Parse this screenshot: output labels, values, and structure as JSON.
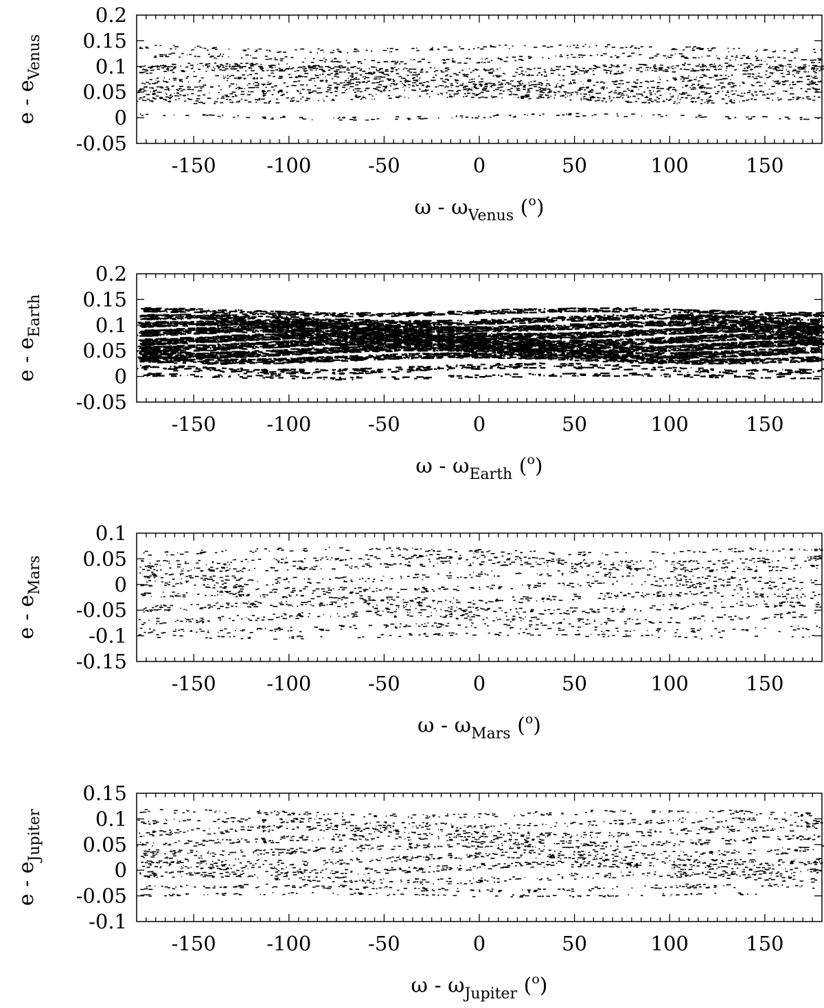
{
  "chart_data": [
    {
      "type": "scatter",
      "xlabel": {
        "prefix": "ω - ω",
        "sub": "Venus",
        "unit_open": " (",
        "unit_sup": "o",
        "unit_close": ")"
      },
      "ylabel": {
        "prefix": "e - e",
        "sub": "Venus"
      },
      "xlim": [
        -180,
        180
      ],
      "ylim": [
        -0.05,
        0.2
      ],
      "xticks": [
        -150,
        -100,
        -50,
        0,
        50,
        100,
        150
      ],
      "xtick_labels": [
        "-150",
        "-100",
        "-50",
        "0",
        "50",
        "100",
        "150"
      ],
      "yticks": [
        -0.05,
        0,
        0.05,
        0.1,
        0.15,
        0.2
      ],
      "ytick_labels": [
        "-0.05",
        "0",
        "0.05",
        "0.1",
        "0.15",
        "0.2"
      ],
      "grid": false,
      "density": 1.0,
      "bands": [
        [
          0.135,
          0.008,
          0.6
        ],
        [
          0.115,
          0.01,
          0.8
        ],
        [
          0.098,
          0.008,
          1.0
        ],
        [
          0.09,
          0.01,
          1.3
        ],
        [
          0.075,
          0.012,
          1.2
        ],
        [
          0.062,
          0.012,
          1.4
        ],
        [
          0.05,
          0.012,
          1.3
        ],
        [
          0.038,
          0.01,
          1.0
        ],
        [
          0.002,
          0.006,
          0.5
        ]
      ]
    },
    {
      "type": "scatter",
      "xlabel": {
        "prefix": "ω - ω",
        "sub": "Earth",
        "unit_open": " (",
        "unit_sup": "o",
        "unit_close": ")"
      },
      "ylabel": {
        "prefix": "e - e",
        "sub": "Earth"
      },
      "xlim": [
        -180,
        180
      ],
      "ylim": [
        -0.05,
        0.2
      ],
      "xticks": [
        -150,
        -100,
        -50,
        0,
        50,
        100,
        150
      ],
      "xtick_labels": [
        "-150",
        "-100",
        "-50",
        "0",
        "50",
        "100",
        "150"
      ],
      "yticks": [
        -0.05,
        0,
        0.05,
        0.1,
        0.15,
        0.2
      ],
      "ytick_labels": [
        "-0.05",
        "0",
        "0.05",
        "0.1",
        "0.15",
        "0.2"
      ],
      "grid": false,
      "density": 2.6,
      "bands": [
        [
          0.125,
          0.008,
          0.9
        ],
        [
          0.11,
          0.01,
          1.4
        ],
        [
          0.098,
          0.01,
          2.0
        ],
        [
          0.085,
          0.012,
          2.4
        ],
        [
          0.072,
          0.012,
          2.4
        ],
        [
          0.06,
          0.012,
          2.4
        ],
        [
          0.048,
          0.012,
          2.2
        ],
        [
          0.035,
          0.01,
          1.5
        ],
        [
          0.015,
          0.01,
          0.6
        ],
        [
          0.0,
          0.006,
          0.3
        ]
      ]
    },
    {
      "type": "scatter",
      "xlabel": {
        "prefix": "ω - ω",
        "sub": "Mars",
        "unit_open": " (",
        "unit_sup": "o",
        "unit_close": ")"
      },
      "ylabel": {
        "prefix": "e - e",
        "sub": "Mars"
      },
      "xlim": [
        -180,
        180
      ],
      "ylim": [
        -0.15,
        0.1
      ],
      "xticks": [
        -150,
        -100,
        -50,
        0,
        50,
        100,
        150
      ],
      "xtick_labels": [
        "-150",
        "-100",
        "-50",
        "0",
        "50",
        "100",
        "150"
      ],
      "yticks": [
        -0.15,
        -0.1,
        -0.05,
        0,
        0.05,
        0.1
      ],
      "ytick_labels": [
        "-0.15",
        "-0.1",
        "-0.05",
        "0",
        "0.05",
        "0.1"
      ],
      "grid": false,
      "density": 0.9,
      "bands": [
        [
          0.065,
          0.008,
          0.6
        ],
        [
          0.048,
          0.01,
          1.0
        ],
        [
          0.035,
          0.01,
          1.0
        ],
        [
          0.015,
          0.012,
          0.9
        ],
        [
          -0.005,
          0.012,
          1.0
        ],
        [
          -0.025,
          0.012,
          1.1
        ],
        [
          -0.045,
          0.012,
          1.2
        ],
        [
          -0.065,
          0.012,
          1.0
        ],
        [
          -0.085,
          0.01,
          0.7
        ],
        [
          -0.1,
          0.006,
          0.4
        ]
      ]
    },
    {
      "type": "scatter",
      "xlabel": {
        "prefix": "ω - ω",
        "sub": "Jupiter",
        "unit_open": " (",
        "unit_sup": "o",
        "unit_close": ")"
      },
      "ylabel": {
        "prefix": "e - e",
        "sub": "Jupiter"
      },
      "xlim": [
        -180,
        180
      ],
      "ylim": [
        -0.1,
        0.15
      ],
      "xticks": [
        -150,
        -100,
        -50,
        0,
        50,
        100,
        150
      ],
      "xtick_labels": [
        "-150",
        "-100",
        "-50",
        "0",
        "50",
        "100",
        "150"
      ],
      "yticks": [
        -0.1,
        -0.05,
        0,
        0.05,
        0.1,
        0.15
      ],
      "ytick_labels": [
        "-0.1",
        "-0.05",
        "0",
        "0.05",
        "0.1",
        "0.15"
      ],
      "grid": false,
      "density": 1.0,
      "bands": [
        [
          0.11,
          0.008,
          0.6
        ],
        [
          0.092,
          0.01,
          0.9
        ],
        [
          0.075,
          0.012,
          1.2
        ],
        [
          0.058,
          0.012,
          1.2
        ],
        [
          0.04,
          0.012,
          1.1
        ],
        [
          0.022,
          0.012,
          1.2
        ],
        [
          0.005,
          0.012,
          1.3
        ],
        [
          -0.015,
          0.012,
          1.1
        ],
        [
          -0.035,
          0.008,
          0.7
        ],
        [
          -0.048,
          0.004,
          0.4
        ]
      ]
    }
  ]
}
